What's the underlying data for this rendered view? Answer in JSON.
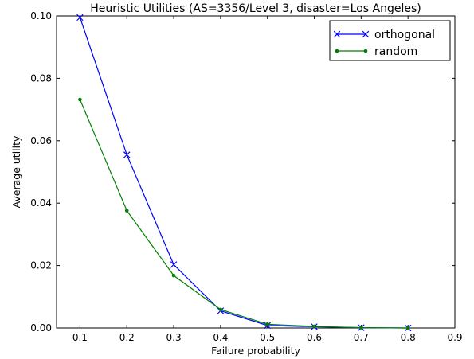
{
  "chart_data": {
    "type": "line",
    "title": "Heuristic Utilities (AS=3356/Level 3, disaster=Los Angeles)",
    "xlabel": "Failure probability",
    "ylabel": "Average utility",
    "xlim": [
      0.05,
      0.9
    ],
    "ylim": [
      0.0,
      0.1
    ],
    "xticks": [
      "0.1",
      "0.2",
      "0.3",
      "0.4",
      "0.5",
      "0.6",
      "0.7",
      "0.8",
      "0.9"
    ],
    "yticks": [
      "0.00",
      "0.02",
      "0.04",
      "0.06",
      "0.08",
      "0.10"
    ],
    "grid": false,
    "legend_position": "top-right",
    "series": [
      {
        "name": "orthogonal",
        "color": "#0000ff",
        "marker": "x",
        "x": [
          0.1,
          0.2,
          0.3,
          0.4,
          0.5,
          0.6,
          0.7,
          0.8
        ],
        "values": [
          0.0995,
          0.0555,
          0.0203,
          0.0055,
          0.0008,
          0.0004,
          0.0001,
          0.0
        ]
      },
      {
        "name": "random",
        "color": "#008000",
        "marker": "dot",
        "x": [
          0.1,
          0.2,
          0.3,
          0.4,
          0.5,
          0.6,
          0.7,
          0.8
        ],
        "values": [
          0.0732,
          0.0376,
          0.0168,
          0.0059,
          0.0012,
          0.0005,
          0.0001,
          0.0
        ]
      }
    ]
  }
}
